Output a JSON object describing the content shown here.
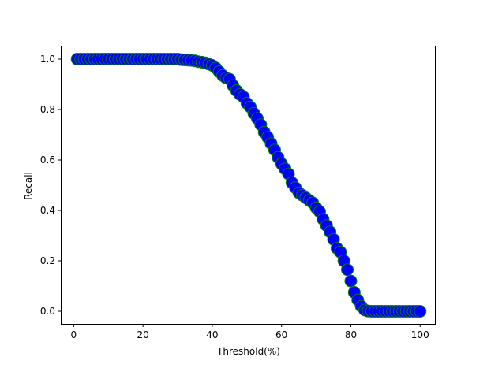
{
  "chart_data": {
    "type": "scatter",
    "title": "",
    "xlabel": "Threshold(%)",
    "ylabel": "Recall",
    "xlim": [
      -3.5,
      104.5
    ],
    "ylim": [
      -0.05,
      1.05
    ],
    "xticks": [
      0,
      20,
      40,
      60,
      80,
      100
    ],
    "xtick_labels": [
      "0",
      "20",
      "40",
      "60",
      "80",
      "100"
    ],
    "yticks": [
      0.0,
      0.2,
      0.4,
      0.6,
      0.8,
      1.0
    ],
    "ytick_labels": [
      "0.0",
      "0.2",
      "0.4",
      "0.6",
      "0.8",
      "1.0"
    ],
    "grid": false,
    "marker_fill": "#0000ff",
    "marker_edge": "#008000",
    "series": [
      {
        "x": [
          1,
          2,
          3,
          4,
          5,
          6,
          7,
          8,
          9,
          10,
          11,
          12,
          13,
          14,
          15,
          16,
          17,
          18,
          19,
          20,
          21,
          22,
          23,
          24,
          25,
          26,
          27,
          28,
          29,
          30,
          31,
          32,
          33,
          34,
          35,
          36,
          37,
          38,
          39,
          40,
          41,
          42,
          43,
          44,
          45,
          46,
          47,
          48,
          49,
          50,
          51,
          52,
          53,
          54,
          55,
          56,
          57,
          58,
          59,
          60,
          61,
          62,
          63,
          64,
          65,
          66,
          67,
          68,
          69,
          70,
          71,
          72,
          73,
          74,
          75,
          76,
          77,
          78,
          79,
          80,
          81,
          82,
          83,
          84,
          85,
          86,
          87,
          88,
          89,
          90,
          91,
          92,
          93,
          94,
          95,
          96,
          97,
          98,
          99,
          100
        ],
        "y": [
          1.0,
          1.0,
          1.0,
          1.0,
          1.0,
          1.0,
          1.0,
          1.0,
          1.0,
          1.0,
          1.0,
          1.0,
          1.0,
          1.0,
          1.0,
          1.0,
          1.0,
          1.0,
          1.0,
          1.0,
          1.0,
          1.0,
          1.0,
          1.0,
          1.0,
          1.0,
          1.0,
          1.0,
          1.0,
          1.0,
          0.998,
          0.997,
          0.996,
          0.995,
          0.993,
          0.99,
          0.988,
          0.985,
          0.98,
          0.975,
          0.965,
          0.95,
          0.935,
          0.925,
          0.92,
          0.895,
          0.875,
          0.86,
          0.85,
          0.825,
          0.81,
          0.785,
          0.765,
          0.74,
          0.71,
          0.69,
          0.665,
          0.64,
          0.61,
          0.585,
          0.565,
          0.545,
          0.51,
          0.49,
          0.47,
          0.46,
          0.45,
          0.44,
          0.43,
          0.41,
          0.395,
          0.365,
          0.34,
          0.315,
          0.285,
          0.25,
          0.235,
          0.2,
          0.165,
          0.12,
          0.075,
          0.045,
          0.02,
          0.005,
          0.001,
          0.0,
          0.0,
          0.0,
          0.0,
          0.0,
          0.0,
          0.0,
          0.0,
          0.0,
          0.0,
          0.0,
          0.0,
          0.0,
          0.0,
          0.0
        ]
      }
    ]
  }
}
